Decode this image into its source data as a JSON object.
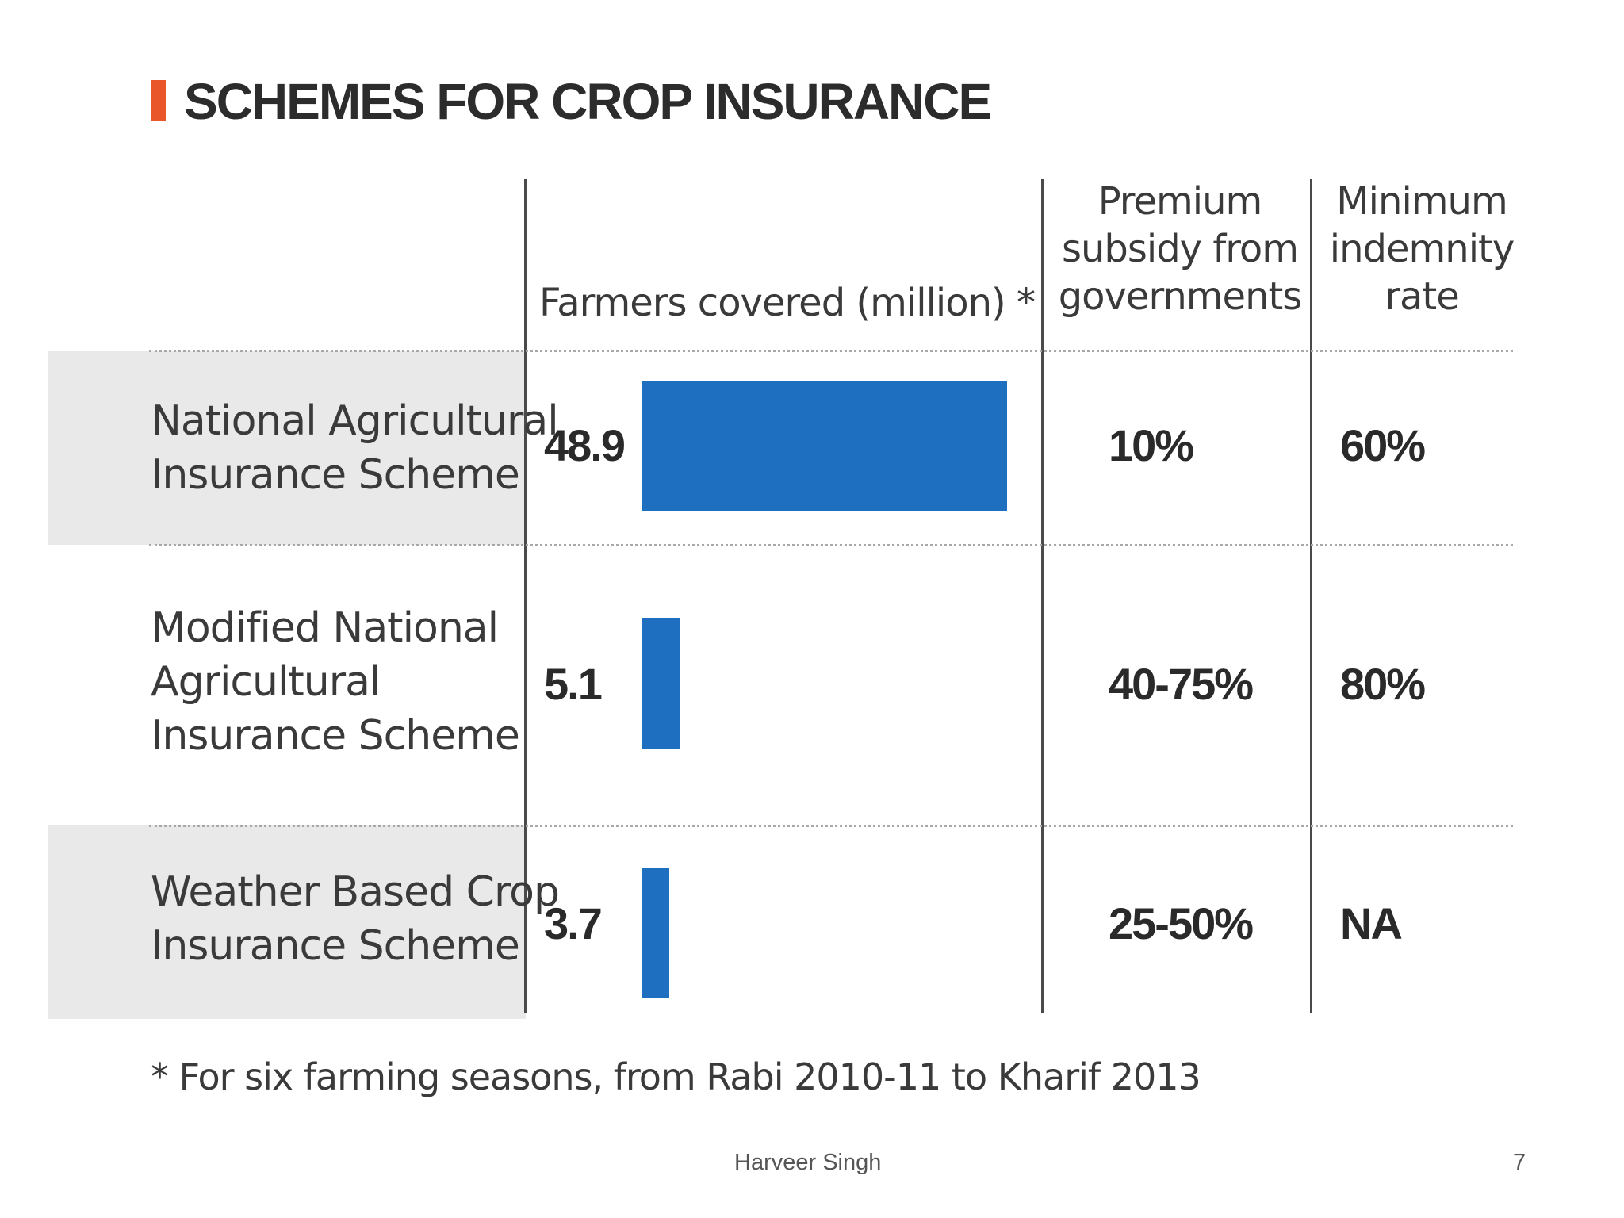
{
  "slide": {
    "author": "Harveer Singh",
    "page_number": "7"
  },
  "chart_data": {
    "type": "table",
    "title": "SCHEMES FOR CROP INSURANCE",
    "columns": [
      "Farmers covered (million) *",
      "Premium subsidy from governments",
      "Minimum indemnity rate"
    ],
    "columns_lines": [
      [
        "Farmers covered (million) *"
      ],
      [
        "Premium",
        "subsidy from",
        "governments"
      ],
      [
        "Minimum",
        "indemnity",
        "rate"
      ]
    ],
    "rows": [
      {
        "scheme": "National Agricultural Insurance Scheme",
        "scheme_lines": [
          "National Agricultural",
          "Insurance Scheme"
        ],
        "farmers_covered_million": 48.9,
        "farmers_covered_label": "48.9",
        "premium_subsidy": "10%",
        "minimum_indemnity_rate": "60%"
      },
      {
        "scheme": "Modified National Agricultural Insurance Scheme",
        "scheme_lines": [
          "Modified National",
          "Agricultural",
          "Insurance Scheme"
        ],
        "farmers_covered_million": 5.1,
        "farmers_covered_label": "5.1",
        "premium_subsidy": "40-75%",
        "minimum_indemnity_rate": "80%"
      },
      {
        "scheme": "Weather Based Crop Insurance Scheme",
        "scheme_lines": [
          "Weather Based Crop",
          "Insurance Scheme"
        ],
        "farmers_covered_million": 3.7,
        "farmers_covered_label": "3.7",
        "premium_subsidy": "25-50%",
        "minimum_indemnity_rate": "NA"
      }
    ],
    "footnote": "* For six farming seasons, from Rabi 2010-11 to Kharif 2013",
    "bar_color": "#1f6fc0",
    "accent_color": "#e8562a",
    "row_shade_color": "#e9e9e9"
  }
}
